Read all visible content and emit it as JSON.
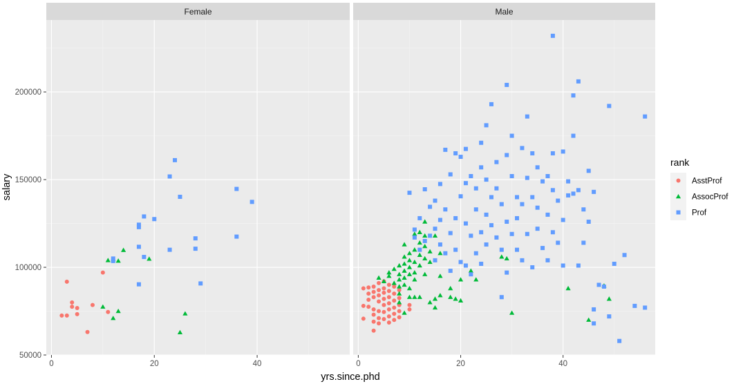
{
  "chart_data": {
    "type": "scatter",
    "facet_variable": "sex",
    "panels": [
      "Female",
      "Male"
    ],
    "xlabel": "yrs.since.phd",
    "ylabel": "salary",
    "xlim": [
      -1,
      58
    ],
    "ylim": [
      50000,
      241000
    ],
    "x_ticks": [
      0,
      20,
      40
    ],
    "x_tick_labels": [
      "0",
      "20",
      "40"
    ],
    "y_ticks": [
      50000,
      100000,
      150000,
      200000
    ],
    "y_tick_labels": [
      "50000",
      "100000",
      "150000",
      "200000"
    ],
    "grid": true,
    "legend": {
      "title": "rank",
      "placement": "right",
      "items": [
        {
          "label": "AsstProf",
          "color": "#F8766D",
          "shape": "circle"
        },
        {
          "label": "AssocProf",
          "color": "#00BA38",
          "shape": "triangle"
        },
        {
          "label": "Prof",
          "color": "#619CFF",
          "shape": "square"
        }
      ]
    },
    "colors": {
      "AsstProf": "#F8766D",
      "AssocProf": "#00BA38",
      "Prof": "#619CFF"
    },
    "series": [
      {
        "panel": "Female",
        "name": "AsstProf",
        "points": [
          [
            2,
            72500
          ],
          [
            3,
            72500
          ],
          [
            3,
            91800
          ],
          [
            4,
            80000
          ],
          [
            4,
            77500
          ],
          [
            5,
            73300
          ],
          [
            5,
            76800
          ],
          [
            7,
            63100
          ],
          [
            8,
            78500
          ],
          [
            10,
            97000
          ],
          [
            11,
            74500
          ]
        ]
      },
      {
        "panel": "Female",
        "name": "AssocProf",
        "points": [
          [
            10,
            77500
          ],
          [
            11,
            104000
          ],
          [
            12,
            71000
          ],
          [
            12,
            104500
          ],
          [
            13,
            75000
          ],
          [
            13,
            103700
          ],
          [
            14,
            109800
          ],
          [
            19,
            104800
          ],
          [
            25,
            62900
          ],
          [
            26,
            73600
          ]
        ]
      },
      {
        "panel": "Female",
        "name": "Prof",
        "points": [
          [
            12,
            105000
          ],
          [
            12,
            103600
          ],
          [
            17,
            124300
          ],
          [
            17,
            122900
          ],
          [
            17,
            111700
          ],
          [
            17,
            90300
          ],
          [
            18,
            129000
          ],
          [
            18,
            105900
          ],
          [
            20,
            127500
          ],
          [
            23,
            151800
          ],
          [
            23,
            110000
          ],
          [
            24,
            161100
          ],
          [
            25,
            140200
          ],
          [
            28,
            116500
          ],
          [
            28,
            110600
          ],
          [
            29,
            90800
          ],
          [
            36,
            144700
          ],
          [
            36,
            117500
          ],
          [
            39,
            137300
          ]
        ]
      },
      {
        "panel": "Male",
        "name": "AsstProf",
        "points": [
          [
            1,
            88000
          ],
          [
            1,
            78000
          ],
          [
            1,
            70700
          ],
          [
            2,
            88500
          ],
          [
            2,
            85000
          ],
          [
            2,
            81500
          ],
          [
            2,
            77500
          ],
          [
            3,
            89000
          ],
          [
            3,
            86000
          ],
          [
            3,
            83000
          ],
          [
            3,
            76000
          ],
          [
            3,
            73000
          ],
          [
            3,
            69000
          ],
          [
            3,
            63900
          ],
          [
            4,
            91000
          ],
          [
            4,
            87000
          ],
          [
            4,
            84000
          ],
          [
            4,
            80500
          ],
          [
            4,
            75000
          ],
          [
            4,
            71000
          ],
          [
            4,
            68000
          ],
          [
            5,
            92000
          ],
          [
            5,
            88000
          ],
          [
            5,
            85500
          ],
          [
            5,
            82000
          ],
          [
            5,
            78500
          ],
          [
            5,
            74500
          ],
          [
            5,
            70500
          ],
          [
            6,
            90000
          ],
          [
            6,
            86500
          ],
          [
            6,
            83000
          ],
          [
            6,
            79500
          ],
          [
            6,
            76000
          ],
          [
            6,
            72000
          ],
          [
            6,
            68500
          ],
          [
            7,
            89000
          ],
          [
            7,
            85000
          ],
          [
            7,
            81000
          ],
          [
            7,
            77000
          ],
          [
            7,
            73500
          ],
          [
            7,
            70000
          ],
          [
            8,
            87000
          ],
          [
            8,
            82500
          ],
          [
            8,
            78500
          ],
          [
            8,
            75000
          ],
          [
            8,
            71500
          ],
          [
            10,
            78500
          ],
          [
            10,
            76000
          ]
        ]
      },
      {
        "panel": "Male",
        "name": "AssocProf",
        "points": [
          [
            4,
            94000
          ],
          [
            5,
            92000
          ],
          [
            6,
            97000
          ],
          [
            6,
            95000
          ],
          [
            7,
            91000
          ],
          [
            7,
            99000
          ],
          [
            8,
            101000
          ],
          [
            8,
            96000
          ],
          [
            8,
            93000
          ],
          [
            8,
            89000
          ],
          [
            8,
            85000
          ],
          [
            8,
            80000
          ],
          [
            9,
            113000
          ],
          [
            9,
            106000
          ],
          [
            9,
            102000
          ],
          [
            9,
            98000
          ],
          [
            9,
            94000
          ],
          [
            9,
            90000
          ],
          [
            9,
            74000
          ],
          [
            10,
            108000
          ],
          [
            10,
            104000
          ],
          [
            10,
            100000
          ],
          [
            10,
            96000
          ],
          [
            10,
            88000
          ],
          [
            10,
            83000
          ],
          [
            11,
            119000
          ],
          [
            11,
            110000
          ],
          [
            11,
            103000
          ],
          [
            11,
            97000
          ],
          [
            11,
            93000
          ],
          [
            11,
            83000
          ],
          [
            12,
            120000
          ],
          [
            12,
            114000
          ],
          [
            12,
            107000
          ],
          [
            12,
            101000
          ],
          [
            12,
            83000
          ],
          [
            13,
            118000
          ],
          [
            13,
            126000
          ],
          [
            13,
            112000
          ],
          [
            13,
            105000
          ],
          [
            13,
            96000
          ],
          [
            14,
            109000
          ],
          [
            14,
            103000
          ],
          [
            14,
            80000
          ],
          [
            15,
            118000
          ],
          [
            15,
            82000
          ],
          [
            15,
            77000
          ],
          [
            16,
            108000
          ],
          [
            16,
            84000
          ],
          [
            16,
            95000
          ],
          [
            18,
            88000
          ],
          [
            18,
            83000
          ],
          [
            19,
            82000
          ],
          [
            20,
            81000
          ],
          [
            20,
            93000
          ],
          [
            22,
            98000
          ],
          [
            23,
            93000
          ],
          [
            28,
            106000
          ],
          [
            29,
            105000
          ],
          [
            30,
            74000
          ],
          [
            41,
            88000
          ],
          [
            45,
            70000
          ],
          [
            48,
            89500
          ],
          [
            49,
            82000
          ]
        ]
      },
      {
        "panel": "Male",
        "name": "Prof",
        "points": [
          [
            10,
            142500
          ],
          [
            11,
            117000
          ],
          [
            11,
            121500
          ],
          [
            12,
            110000
          ],
          [
            12,
            128000
          ],
          [
            13,
            144500
          ],
          [
            13,
            115000
          ],
          [
            14,
            118000
          ],
          [
            14,
            134500
          ],
          [
            15,
            104000
          ],
          [
            15,
            122000
          ],
          [
            15,
            138000
          ],
          [
            16,
            113000
          ],
          [
            16,
            127000
          ],
          [
            16,
            147500
          ],
          [
            17,
            167000
          ],
          [
            17,
            108000
          ],
          [
            17,
            133000
          ],
          [
            18,
            119500
          ],
          [
            18,
            153000
          ],
          [
            18,
            98000
          ],
          [
            19,
            165000
          ],
          [
            19,
            128000
          ],
          [
            19,
            110000
          ],
          [
            20,
            163000
          ],
          [
            20,
            140500
          ],
          [
            20,
            103000
          ],
          [
            21,
            167500
          ],
          [
            21,
            148000
          ],
          [
            21,
            125000
          ],
          [
            21,
            101000
          ],
          [
            22,
            152000
          ],
          [
            22,
            118000
          ],
          [
            22,
            96000
          ],
          [
            23,
            145000
          ],
          [
            23,
            133000
          ],
          [
            23,
            108000
          ],
          [
            24,
            171000
          ],
          [
            24,
            157000
          ],
          [
            24,
            120000
          ],
          [
            24,
            102000
          ],
          [
            25,
            181000
          ],
          [
            25,
            150000
          ],
          [
            25,
            130000
          ],
          [
            25,
            113000
          ],
          [
            26,
            193000
          ],
          [
            26,
            140000
          ],
          [
            26,
            124000
          ],
          [
            27,
            160000
          ],
          [
            27,
            145000
          ],
          [
            27,
            117000
          ],
          [
            28,
            136000
          ],
          [
            28,
            110000
          ],
          [
            28,
            83000
          ],
          [
            29,
            204000
          ],
          [
            29,
            164000
          ],
          [
            29,
            126000
          ],
          [
            29,
            97000
          ],
          [
            30,
            175000
          ],
          [
            30,
            152000
          ],
          [
            30,
            119000
          ],
          [
            31,
            140000
          ],
          [
            31,
            128000
          ],
          [
            31,
            110000
          ],
          [
            32,
            168000
          ],
          [
            32,
            136000
          ],
          [
            32,
            104000
          ],
          [
            33,
            186000
          ],
          [
            33,
            151000
          ],
          [
            33,
            119000
          ],
          [
            34,
            165000
          ],
          [
            34,
            140000
          ],
          [
            34,
            100000
          ],
          [
            35,
            157000
          ],
          [
            35,
            134000
          ],
          [
            35,
            122000
          ],
          [
            36,
            149000
          ],
          [
            36,
            111000
          ],
          [
            37,
            152000
          ],
          [
            37,
            130000
          ],
          [
            37,
            104000
          ],
          [
            38,
            232000
          ],
          [
            38,
            165000
          ],
          [
            38,
            144000
          ],
          [
            38,
            120000
          ],
          [
            39,
            138000
          ],
          [
            39,
            114000
          ],
          [
            40,
            166000
          ],
          [
            40,
            127000
          ],
          [
            40,
            101000
          ],
          [
            41,
            149000
          ],
          [
            41,
            141000
          ],
          [
            42,
            198000
          ],
          [
            42,
            175000
          ],
          [
            42,
            142000
          ],
          [
            43,
            206000
          ],
          [
            43,
            144000
          ],
          [
            43,
            101000
          ],
          [
            44,
            133000
          ],
          [
            44,
            114000
          ],
          [
            45,
            155000
          ],
          [
            45,
            126000
          ],
          [
            46,
            143000
          ],
          [
            46,
            76000
          ],
          [
            46,
            68000
          ],
          [
            47,
            90000
          ],
          [
            48,
            89000
          ],
          [
            49,
            192000
          ],
          [
            49,
            72000
          ],
          [
            50,
            102000
          ],
          [
            51,
            58000
          ],
          [
            52,
            107000
          ],
          [
            54,
            78000
          ],
          [
            56,
            186000
          ],
          [
            56,
            77000
          ]
        ]
      }
    ]
  }
}
